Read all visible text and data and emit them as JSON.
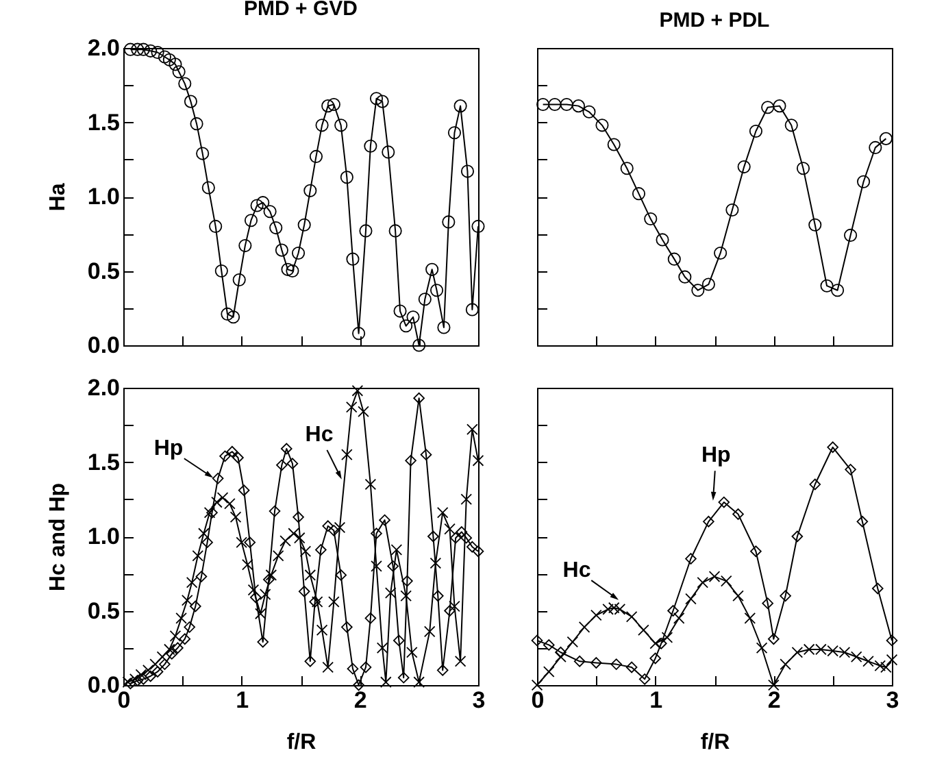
{
  "chart_data": [
    {
      "type": "line",
      "title": "PMD + GVD",
      "ylabel": "Ha",
      "marker": "circle",
      "tick_labels": "y",
      "xlim": [
        0,
        3
      ],
      "ylim": [
        0,
        2
      ],
      "xticks": [
        0,
        0.5,
        1,
        1.5,
        2,
        2.5,
        3
      ],
      "yticks": [
        {
          "value": 0,
          "label": "0.0"
        },
        {
          "value": 0.25,
          "label": null
        },
        {
          "value": 0.5,
          "label": "0.5"
        },
        {
          "value": 0.75,
          "label": null
        },
        {
          "value": 1,
          "label": "1.0"
        },
        {
          "value": 1.25,
          "label": null
        },
        {
          "value": 1.5,
          "label": "1.5"
        },
        {
          "value": 1.75,
          "label": null
        },
        {
          "value": 2,
          "label": "2.0"
        }
      ],
      "series": [
        {
          "color": "#000000",
          "x": [
            0.06,
            0.12,
            0.17,
            0.23,
            0.29,
            0.35,
            0.39,
            0.44,
            0.47,
            0.52,
            0.57,
            0.62,
            0.67,
            0.72,
            0.78,
            0.83,
            0.88,
            0.93,
            0.98,
            1.03,
            1.08,
            1.13,
            1.18,
            1.24,
            1.29,
            1.34,
            1.39,
            1.43,
            1.48,
            1.53,
            1.58,
            1.63,
            1.68,
            1.73,
            1.78,
            1.84,
            1.89,
            1.94,
            1.99,
            2.05,
            2.09,
            2.14,
            2.19,
            2.24,
            2.3,
            2.34,
            2.39,
            2.45,
            2.5,
            2.55,
            2.61,
            2.65,
            2.71,
            2.75,
            2.8,
            2.85,
            2.91,
            2.95,
            3.0
          ],
          "values": [
            1.99,
            1.99,
            1.99,
            1.98,
            1.97,
            1.94,
            1.92,
            1.89,
            1.84,
            1.76,
            1.64,
            1.49,
            1.29,
            1.06,
            0.8,
            0.5,
            0.21,
            0.19,
            0.44,
            0.67,
            0.84,
            0.94,
            0.96,
            0.9,
            0.79,
            0.64,
            0.51,
            0.5,
            0.62,
            0.81,
            1.04,
            1.27,
            1.48,
            1.61,
            1.62,
            1.48,
            1.13,
            0.58,
            0.08,
            0.77,
            1.34,
            1.66,
            1.64,
            1.3,
            0.77,
            0.23,
            0.13,
            0.19,
            0.0,
            0.31,
            0.51,
            0.37,
            0.12,
            0.83,
            1.43,
            1.61,
            1.17,
            0.24,
            0.8
          ]
        }
      ]
    },
    {
      "type": "line",
      "title": "PMD + PDL",
      "marker": "circle",
      "tick_labels": false,
      "xlim": [
        0,
        3
      ],
      "ylim": [
        0,
        2
      ],
      "xticks": [
        0,
        0.5,
        1,
        1.5,
        2,
        2.5,
        3
      ],
      "yticks": [
        0,
        0.25,
        0.5,
        0.75,
        1,
        1.25,
        1.5,
        1.75,
        2
      ],
      "series": [
        {
          "color": "#000000",
          "x": [
            0.05,
            0.15,
            0.25,
            0.35,
            0.44,
            0.55,
            0.65,
            0.76,
            0.86,
            0.96,
            1.06,
            1.16,
            1.25,
            1.36,
            1.45,
            1.55,
            1.65,
            1.75,
            1.85,
            1.95,
            2.05,
            2.15,
            2.25,
            2.35,
            2.45,
            2.54,
            2.65,
            2.76,
            2.86,
            2.95
          ],
          "values": [
            1.62,
            1.62,
            1.62,
            1.61,
            1.57,
            1.48,
            1.35,
            1.19,
            1.02,
            0.85,
            0.71,
            0.58,
            0.46,
            0.37,
            0.41,
            0.62,
            0.91,
            1.2,
            1.44,
            1.6,
            1.61,
            1.48,
            1.19,
            0.81,
            0.4,
            0.37,
            0.74,
            1.1,
            1.33,
            1.39
          ]
        }
      ]
    },
    {
      "type": "line",
      "xlabel": "f/R",
      "ylabel": "Hc and Hp",
      "xlim": [
        0,
        3
      ],
      "ylim": [
        0,
        2
      ],
      "xticks": [
        0,
        {
          "value": 0.5,
          "label": null
        },
        1,
        {
          "value": 1.5,
          "label": null
        },
        2,
        {
          "value": 2.5,
          "label": null
        },
        3
      ],
      "yticks": [
        {
          "value": 0,
          "label": "0.0"
        },
        {
          "value": 0.25,
          "label": null
        },
        {
          "value": 0.5,
          "label": "0.5"
        },
        {
          "value": 0.75,
          "label": null
        },
        {
          "value": 1,
          "label": "1.0"
        },
        {
          "value": 1.25,
          "label": null
        },
        {
          "value": 1.5,
          "label": "1.5"
        },
        {
          "value": 1.75,
          "label": null
        },
        {
          "value": 2,
          "label": "2.0"
        }
      ],
      "annotations": [
        {
          "text": "Hp",
          "x": 0.73,
          "y": 1.41
        },
        {
          "text": "Hc",
          "x": 1.83,
          "y": 1.41
        }
      ],
      "series": [
        {
          "color": "#000000",
          "marker": "diamond",
          "x": [
            0.06,
            0.12,
            0.17,
            0.23,
            0.29,
            0.35,
            0.41,
            0.46,
            0.52,
            0.56,
            0.61,
            0.66,
            0.71,
            0.75,
            0.8,
            0.86,
            0.92,
            0.97,
            1.02,
            1.07,
            1.12,
            1.18,
            1.23,
            1.28,
            1.34,
            1.38,
            1.43,
            1.48,
            1.53,
            1.58,
            1.62,
            1.67,
            1.73,
            1.78,
            1.84,
            1.89,
            1.94,
            1.99,
            2.05,
            2.09,
            2.14,
            2.21,
            2.28,
            2.33,
            2.37,
            2.4,
            2.43,
            2.5,
            2.56,
            2.62,
            2.66,
            2.7,
            2.76,
            2.81,
            2.86,
            2.9,
            2.95,
            3.0
          ],
          "values": [
            0.01,
            0.03,
            0.04,
            0.06,
            0.09,
            0.14,
            0.21,
            0.25,
            0.31,
            0.39,
            0.53,
            0.73,
            0.96,
            1.16,
            1.39,
            1.54,
            1.57,
            1.53,
            1.31,
            0.96,
            0.59,
            0.29,
            0.71,
            1.17,
            1.48,
            1.59,
            1.49,
            1.13,
            0.63,
            0.16,
            0.56,
            0.91,
            1.07,
            1.04,
            0.74,
            0.39,
            0.11,
            0.0,
            0.12,
            0.45,
            1.02,
            1.11,
            0.8,
            0.3,
            0.05,
            0.7,
            1.51,
            1.93,
            1.55,
            1.0,
            0.6,
            0.1,
            0.5,
            0.99,
            1.03,
            0.99,
            0.93,
            0.9
          ]
        },
        {
          "color": "#000000",
          "marker": "cross",
          "x": [
            0.04,
            0.1,
            0.15,
            0.21,
            0.27,
            0.33,
            0.39,
            0.44,
            0.49,
            0.54,
            0.58,
            0.63,
            0.68,
            0.73,
            0.79,
            0.84,
            0.9,
            0.95,
            1.0,
            1.05,
            1.1,
            1.16,
            1.2,
            1.25,
            1.31,
            1.37,
            1.44,
            1.49,
            1.54,
            1.58,
            1.64,
            1.68,
            1.73,
            1.78,
            1.83,
            1.89,
            1.93,
            1.98,
            2.03,
            2.09,
            2.14,
            2.19,
            2.22,
            2.26,
            2.31,
            2.39,
            2.44,
            2.5,
            2.59,
            2.64,
            2.7,
            2.76,
            2.8,
            2.85,
            2.9,
            2.95,
            3.0
          ],
          "values": [
            0.02,
            0.04,
            0.07,
            0.1,
            0.14,
            0.19,
            0.24,
            0.33,
            0.45,
            0.57,
            0.69,
            0.87,
            1.02,
            1.16,
            1.23,
            1.26,
            1.22,
            1.13,
            0.96,
            0.81,
            0.64,
            0.48,
            0.61,
            0.74,
            0.87,
            0.97,
            1.02,
            0.99,
            0.9,
            0.74,
            0.56,
            0.37,
            0.12,
            0.56,
            1.06,
            1.55,
            1.87,
            1.98,
            1.84,
            1.35,
            0.8,
            0.25,
            0.02,
            0.62,
            0.91,
            0.6,
            0.22,
            0.02,
            0.36,
            0.82,
            1.16,
            1.05,
            0.53,
            0.16,
            1.25,
            1.72,
            1.51
          ]
        }
      ]
    },
    {
      "type": "line",
      "xlabel": "f/R",
      "tick_labels": "x",
      "xlim": [
        0,
        3
      ],
      "ylim": [
        0,
        2
      ],
      "xticks": [
        0,
        {
          "value": 0.5,
          "label": null
        },
        1,
        {
          "value": 1.5,
          "label": null
        },
        2,
        {
          "value": 2.5,
          "label": null
        },
        3
      ],
      "yticks": [
        0,
        0.25,
        0.5,
        0.75,
        1,
        1.25,
        1.5,
        1.75,
        2
      ],
      "annotations": [
        {
          "text": "Hp",
          "x": 1.49,
          "y": 1.27
        },
        {
          "text": "Hc",
          "x": 0.66,
          "y": 0.59
        }
      ],
      "series": [
        {
          "color": "#000000",
          "marker": "diamond",
          "x": [
            0.0,
            0.1,
            0.2,
            0.36,
            0.5,
            0.67,
            0.8,
            0.91,
            1.0,
            1.05,
            1.15,
            1.3,
            1.45,
            1.58,
            1.7,
            1.85,
            1.95,
            2.0,
            2.1,
            2.2,
            2.35,
            2.5,
            2.65,
            2.75,
            2.88,
            3.0
          ],
          "values": [
            0.3,
            0.27,
            0.22,
            0.16,
            0.15,
            0.14,
            0.12,
            0.04,
            0.18,
            0.28,
            0.5,
            0.85,
            1.1,
            1.23,
            1.15,
            0.9,
            0.55,
            0.31,
            0.6,
            1.0,
            1.35,
            1.6,
            1.45,
            1.1,
            0.65,
            0.3
          ]
        },
        {
          "color": "#000000",
          "marker": "cross",
          "x": [
            0.0,
            0.1,
            0.2,
            0.3,
            0.4,
            0.5,
            0.6,
            0.65,
            0.7,
            0.8,
            0.9,
            1.0,
            1.1,
            1.2,
            1.3,
            1.4,
            1.5,
            1.6,
            1.7,
            1.8,
            1.9,
            2.0,
            2.1,
            2.2,
            2.3,
            2.4,
            2.5,
            2.6,
            2.7,
            2.8,
            2.9,
            2.95,
            3.0
          ],
          "values": [
            0.0,
            0.09,
            0.19,
            0.29,
            0.39,
            0.47,
            0.51,
            0.52,
            0.51,
            0.46,
            0.37,
            0.28,
            0.32,
            0.45,
            0.58,
            0.69,
            0.73,
            0.7,
            0.6,
            0.45,
            0.25,
            0.0,
            0.14,
            0.22,
            0.24,
            0.24,
            0.23,
            0.22,
            0.19,
            0.16,
            0.13,
            0.12,
            0.17
          ]
        }
      ]
    }
  ]
}
